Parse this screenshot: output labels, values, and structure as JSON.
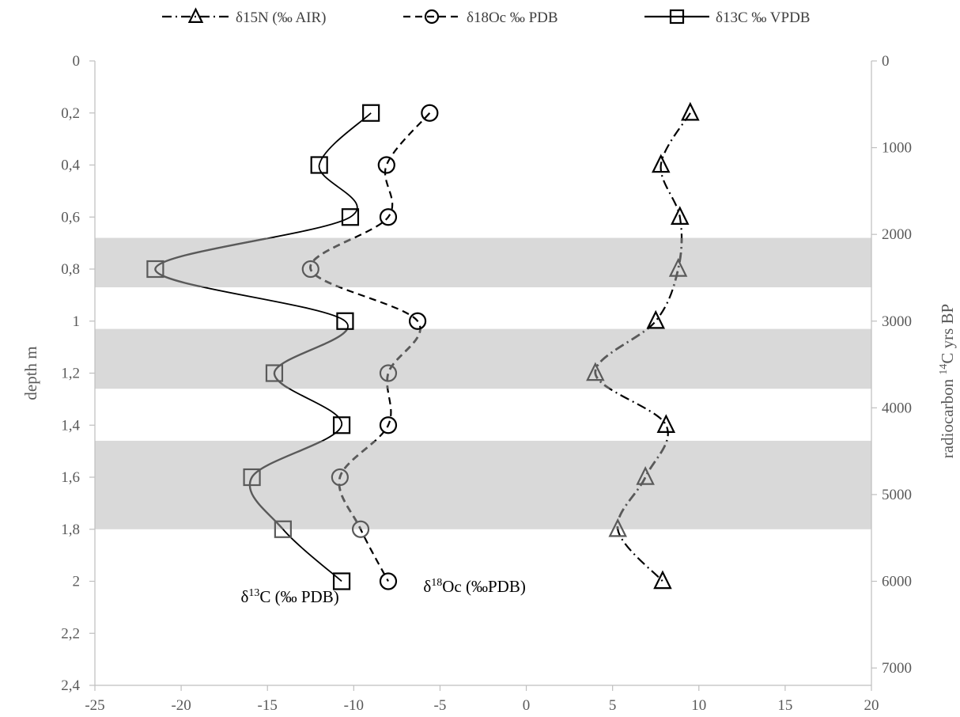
{
  "chart_data": {
    "type": "line",
    "xlim": [
      -25,
      20
    ],
    "xticks": [
      -25,
      -20,
      -15,
      -10,
      -5,
      0,
      5,
      10,
      15,
      20
    ],
    "ylim": [
      0,
      2.4
    ],
    "yticks": [
      "0",
      "0,2",
      "0,4",
      "0,6",
      "0,8",
      "1",
      "1,2",
      "1,4",
      "1,6",
      "1,8",
      "2",
      "2,2",
      "2,4"
    ],
    "ylabel": "depth m",
    "y2ticks": [
      "0",
      "1000",
      "2000",
      "3000",
      "4000",
      "5000",
      "6000",
      "7000"
    ],
    "y2ticks_values": [
      0,
      1000,
      2000,
      3000,
      4000,
      5000,
      6000,
      7000
    ],
    "y2lim": [
      0,
      7200
    ],
    "y2label_prefix": "radiocarbon ",
    "y2label_sup": "14",
    "y2label_suffix": "C yrs BP",
    "legend_position": "top",
    "shaded_depth_bands": [
      [
        0.68,
        0.87
      ],
      [
        1.03,
        1.26
      ],
      [
        1.46,
        1.8
      ]
    ],
    "series": [
      {
        "name": "δ15N (‰ AIR)",
        "marker": "triangle",
        "line": "dash-dot",
        "points": [
          {
            "x": 9.5,
            "depth": 0.2
          },
          {
            "x": 7.8,
            "depth": 0.4
          },
          {
            "x": 8.9,
            "depth": 0.6
          },
          {
            "x": 8.8,
            "depth": 0.8
          },
          {
            "x": 7.5,
            "depth": 1.0
          },
          {
            "x": 4.0,
            "depth": 1.2
          },
          {
            "x": 8.1,
            "depth": 1.4
          },
          {
            "x": 6.9,
            "depth": 1.6
          },
          {
            "x": 5.3,
            "depth": 1.8
          },
          {
            "x": 7.9,
            "depth": 2.0
          }
        ]
      },
      {
        "name": "δ18Oc ‰ PDB",
        "marker": "circle",
        "line": "dashed",
        "points": [
          {
            "x": -5.6,
            "depth": 0.2
          },
          {
            "x": -8.1,
            "depth": 0.4
          },
          {
            "x": -8.0,
            "depth": 0.6
          },
          {
            "x": -12.5,
            "depth": 0.8
          },
          {
            "x": -6.3,
            "depth": 1.0
          },
          {
            "x": -8.0,
            "depth": 1.2
          },
          {
            "x": -8.0,
            "depth": 1.4
          },
          {
            "x": -10.8,
            "depth": 1.6
          },
          {
            "x": -9.6,
            "depth": 1.8
          },
          {
            "x": -8.0,
            "depth": 2.0
          }
        ]
      },
      {
        "name": "δ13C ‰ VPDB",
        "marker": "square",
        "line": "solid",
        "points": [
          {
            "x": -9.0,
            "depth": 0.2
          },
          {
            "x": -12.0,
            "depth": 0.4
          },
          {
            "x": -10.2,
            "depth": 0.6
          },
          {
            "x": -21.5,
            "depth": 0.8
          },
          {
            "x": -10.5,
            "depth": 1.0
          },
          {
            "x": -14.6,
            "depth": 1.2
          },
          {
            "x": -10.7,
            "depth": 1.4
          },
          {
            "x": -15.9,
            "depth": 1.6
          },
          {
            "x": -14.1,
            "depth": 1.8
          },
          {
            "x": -10.7,
            "depth": 2.0
          }
        ]
      }
    ],
    "annotations": [
      {
        "prefix": "δ",
        "sup": "13",
        "suffix": "C (‰ PDB)",
        "x": -13.7,
        "depth": 2.06
      },
      {
        "prefix": "δ",
        "sup": "18",
        "suffix": "Oc (‰PDB)",
        "x": -3.0,
        "depth": 2.02
      }
    ]
  }
}
